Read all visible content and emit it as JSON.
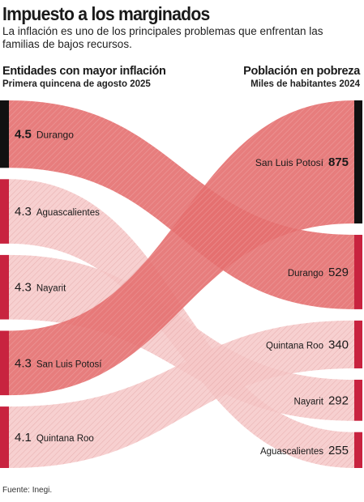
{
  "header": {
    "title": "Impuesto a los marginados",
    "subtitle": "La inflación es uno de los principales problemas que enfrentan las familias de bajos recursos."
  },
  "left_column": {
    "title": "Entidades con mayor inflación",
    "subtitle": "Primera quincena de agosto 2025"
  },
  "right_column": {
    "title": "Población en pobreza",
    "subtitle": "Miles de habitantes 2024"
  },
  "source": "Fuente: Inegi.",
  "colors": {
    "dark_flow": "#e46f6f",
    "light_flow": "#f6c8c8",
    "bar_red": "#c8233f",
    "bar_black": "#111111"
  },
  "chart_data": {
    "type": "sankey",
    "left": [
      {
        "state": "Durango",
        "value": "4.5",
        "highlight": true
      },
      {
        "state": "Aguascalientes",
        "value": "4.3",
        "highlight": false
      },
      {
        "state": "Nayarit",
        "value": "4.3",
        "highlight": false
      },
      {
        "state": "San Luis Potosí",
        "value": "4.3",
        "highlight": false
      },
      {
        "state": "Quintana Roo",
        "value": "4.1",
        "highlight": false
      }
    ],
    "right": [
      {
        "state": "San Luis Potosí",
        "value": "875",
        "highlight": true
      },
      {
        "state": "Durango",
        "value": "529",
        "highlight": false
      },
      {
        "state": "Quintana Roo",
        "value": "340",
        "highlight": false
      },
      {
        "state": "Nayarit",
        "value": "292",
        "highlight": false
      },
      {
        "state": "Aguascalientes",
        "value": "255",
        "highlight": false
      }
    ]
  }
}
